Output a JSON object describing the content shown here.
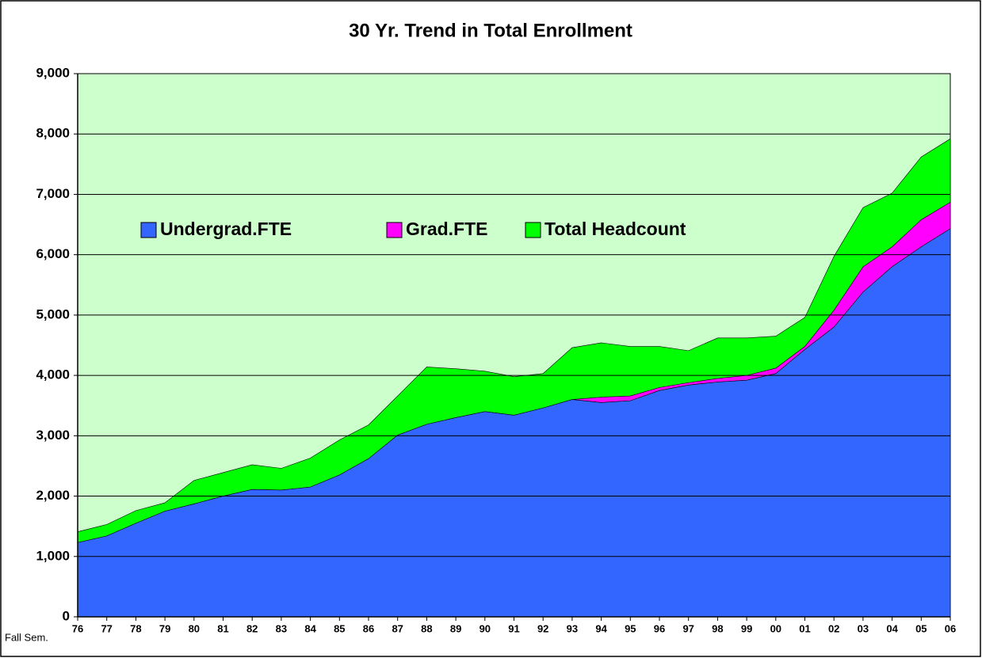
{
  "chart_data": {
    "type": "area",
    "title": "30 Yr. Trend in Total Enrollment",
    "x_label": "Fall Sem.",
    "categories": [
      "76",
      "77",
      "78",
      "79",
      "80",
      "81",
      "82",
      "83",
      "84",
      "85",
      "86",
      "87",
      "88",
      "89",
      "90",
      "91",
      "92",
      "93",
      "94",
      "95",
      "96",
      "97",
      "98",
      "99",
      "00",
      "01",
      "02",
      "03",
      "04",
      "05",
      "06"
    ],
    "series": [
      {
        "name": "Undergrad.FTE",
        "color": "#3366ff",
        "values": [
          1230,
          1340,
          1550,
          1750,
          1870,
          2000,
          2110,
          2100,
          2150,
          2350,
          2620,
          3010,
          3190,
          3300,
          3400,
          3340,
          3460,
          3600,
          3550,
          3580,
          3750,
          3840,
          3890,
          3920,
          4030,
          4430,
          4800,
          5380,
          5800,
          6130,
          6430
        ]
      },
      {
        "name": "Grad.FTE",
        "color": "#ff00ff",
        "stacked": true,
        "values": [
          0,
          0,
          0,
          0,
          0,
          0,
          0,
          0,
          0,
          0,
          0,
          0,
          0,
          0,
          0,
          0,
          0,
          0,
          90,
          80,
          50,
          40,
          60,
          80,
          90,
          50,
          280,
          420,
          330,
          450,
          440
        ]
      },
      {
        "name": "Total Headcount",
        "color": "#00ff00",
        "values": [
          1410,
          1530,
          1760,
          1890,
          2260,
          2390,
          2520,
          2460,
          2630,
          2930,
          3180,
          3660,
          4140,
          4110,
          4070,
          3980,
          4030,
          4460,
          4540,
          4480,
          4480,
          4410,
          4620,
          4620,
          4650,
          4960,
          5970,
          6780,
          7020,
          7620,
          7920
        ]
      }
    ],
    "ylim": [
      0,
      9000
    ],
    "yticks": [
      0,
      {
        "value": 1000,
        "label": "1,000"
      },
      {
        "value": 2000,
        "label": "2,000"
      },
      {
        "value": 3000,
        "label": "3,000"
      },
      {
        "value": 4000,
        "label": "4,000"
      },
      {
        "value": 5000,
        "label": "5,000"
      },
      {
        "value": 6000,
        "label": "6,000"
      },
      {
        "value": 7000,
        "label": "7,000"
      },
      {
        "value": 8000,
        "label": "8,000"
      },
      {
        "value": 9000,
        "label": "9,000"
      }
    ],
    "grid": true,
    "plot_background": "#ccffcc"
  }
}
